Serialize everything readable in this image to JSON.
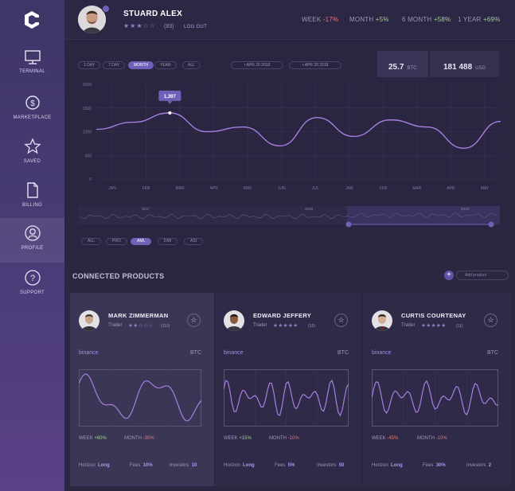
{
  "sidebar": {
    "items": [
      {
        "label": "TERMINAL",
        "icon": "monitor-icon"
      },
      {
        "label": "MARKETPLACE",
        "icon": "dollar-icon"
      },
      {
        "label": "SAVED",
        "icon": "star-icon"
      },
      {
        "label": "BILLING",
        "icon": "document-icon"
      },
      {
        "label": "PROFILE",
        "icon": "user-icon",
        "active": true
      },
      {
        "label": "SUPPORT",
        "icon": "question-icon"
      }
    ]
  },
  "header": {
    "user_name": "STUARD ALEX",
    "rating_count": "(83)",
    "logout": "LOG OUT",
    "perf": [
      {
        "label": "WEEK",
        "value": "-17%"
      },
      {
        "label": "MONTH",
        "value": "+5%"
      },
      {
        "label": "6 MONTH",
        "value": "+58%"
      },
      {
        "label": "1 YEAR",
        "value": "+69%"
      }
    ]
  },
  "chart": {
    "ranges": [
      "1 DAY",
      "7 DAY",
      "MONTH",
      "YEAR",
      "ALL"
    ],
    "active_range": "MONTH",
    "date_from": "APR 20 2018",
    "date_to": "APR 20 2018",
    "btc_value": "25.7",
    "btc_unit": "BTC",
    "usd_value": "181 488",
    "usd_unit": "USD",
    "tooltip": "1,397",
    "timeframes": [
      "ALL",
      "PRO",
      "AML",
      "DMI",
      "ASI"
    ],
    "active_timeframe": "AML",
    "overview_years": [
      "2017",
      "2018",
      "2019"
    ]
  },
  "chart_data": {
    "type": "line",
    "xlabel": "",
    "ylabel": "",
    "ylim": [
      0,
      2000
    ],
    "yticks": [
      "2000",
      "1500",
      "1000",
      "500",
      "0"
    ],
    "categories": [
      "JAN",
      "FEB",
      "MAR",
      "APR",
      "MAY",
      "JUN",
      "JUL",
      "JAN",
      "FEB",
      "MAR",
      "APR",
      "MAY"
    ],
    "values": [
      1050,
      1200,
      1397,
      1000,
      1100,
      700,
      1300,
      900,
      1250,
      1100,
      650,
      1220
    ],
    "grid": true
  },
  "products": {
    "title": "CONNECTED PRODUCTS",
    "add_placeholder": "Add product",
    "cards": [
      {
        "name": "MARK ZIMMERMAN",
        "role": "Trader",
        "count": "(110)",
        "exchange": "binance",
        "pair": "BTC",
        "week_label": "WEEK",
        "week": "+60%",
        "month_label": "MONTH",
        "month": "-30%",
        "horizon_label": "Horizon",
        "horizon": "Long",
        "fees_label": "Fees",
        "fees": "10%",
        "investors_label": "Investors",
        "investors": "10"
      },
      {
        "name": "EDWARD JEFFERY",
        "role": "Trader",
        "count": "(15)",
        "exchange": "binance",
        "pair": "BTC",
        "week_label": "WEEK",
        "week": "+15%",
        "month_label": "MONTH",
        "month": "-10%",
        "horizon_label": "Horizon",
        "horizon": "Long",
        "fees_label": "Fees",
        "fees": "5%",
        "investors_label": "Investors",
        "investors": "50"
      },
      {
        "name": "CURTIS COURTENAY",
        "role": "Trader",
        "count": "(11)",
        "exchange": "binance",
        "pair": "BTC",
        "week_label": "WEEK",
        "week": "-45%",
        "month_label": "MONTH",
        "month": "-10%",
        "horizon_label": "Horizon",
        "horizon": "Long",
        "fees_label": "Fees",
        "fees": "30%",
        "investors_label": "Investors",
        "investors": "2"
      }
    ]
  },
  "colors": {
    "accent": "#6d62b8",
    "line": "#a77fe0",
    "positive": "#9fd08a",
    "negative": "#e07b74"
  }
}
